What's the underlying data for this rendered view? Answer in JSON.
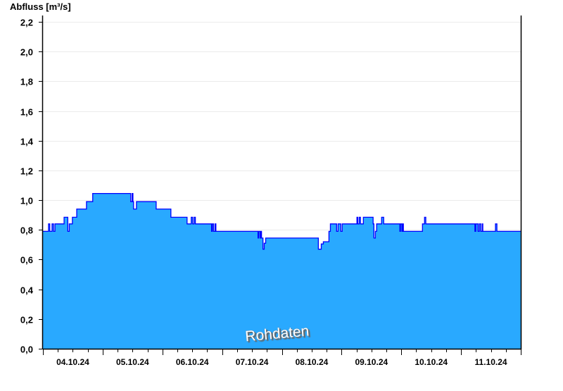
{
  "chart_data": {
    "type": "area",
    "ylabel": "Abfluss [m³/s]",
    "ylim": [
      0,
      2.2
    ],
    "yticks": [
      "0,0",
      "0,2",
      "0,4",
      "0,6",
      "0,8",
      "1,0",
      "1,2",
      "1,4",
      "1,6",
      "1,8",
      "2,0",
      "2,2"
    ],
    "xlim": [
      "04.10.24 00:00",
      "12.10.24 00:00"
    ],
    "xticks": [
      "04.10.24",
      "05.10.24",
      "06.10.24",
      "07.10.24",
      "08.10.24",
      "09.10.24",
      "10.10.24",
      "11.10.24"
    ],
    "grid": true,
    "watermark": "Rohdaten",
    "colors": {
      "fill": "#29a9ff",
      "line": "#0000ff",
      "day_separator": "#1f5f8f",
      "grid": "#ebebeb"
    },
    "step": true,
    "points": [
      [
        "04.10.24 00:00",
        0.79
      ],
      [
        "04.10.24 02:15",
        0.84
      ],
      [
        "04.10.24 02:45",
        0.79
      ],
      [
        "04.10.24 03:40",
        0.84
      ],
      [
        "04.10.24 04:15",
        0.79
      ],
      [
        "04.10.24 04:50",
        0.84
      ],
      [
        "04.10.24 08:30",
        0.885
      ],
      [
        "04.10.24 10:00",
        0.79
      ],
      [
        "04.10.24 10:35",
        0.84
      ],
      [
        "04.10.24 11:50",
        0.885
      ],
      [
        "04.10.24 13:35",
        0.94
      ],
      [
        "04.10.24 17:30",
        0.99
      ],
      [
        "04.10.24 20:00",
        1.045
      ],
      [
        "05.10.24 11:15",
        0.99
      ],
      [
        "05.10.24 11:50",
        1.045
      ],
      [
        "05.10.24 12:10",
        0.99
      ],
      [
        "05.10.24 12:25",
        0.94
      ],
      [
        "05.10.24 13:35",
        0.99
      ],
      [
        "05.10.24 21:30",
        0.94
      ],
      [
        "06.10.24 03:25",
        0.885
      ],
      [
        "06.10.24 09:55",
        0.84
      ],
      [
        "06.10.24 11:35",
        0.885
      ],
      [
        "06.10.24 12:10",
        0.84
      ],
      [
        "06.10.24 12:45",
        0.885
      ],
      [
        "06.10.24 13:15",
        0.84
      ],
      [
        "06.10.24 19:45",
        0.79
      ],
      [
        "06.10.24 20:05",
        0.84
      ],
      [
        "06.10.24 20:35",
        0.79
      ],
      [
        "06.10.24 21:10",
        0.84
      ],
      [
        "06.10.24 21:30",
        0.79
      ],
      [
        "07.10.24 14:25",
        0.745
      ],
      [
        "07.10.24 14:40",
        0.79
      ],
      [
        "07.10.24 15:15",
        0.745
      ],
      [
        "07.10.24 15:30",
        0.79
      ],
      [
        "07.10.24 15:50",
        0.745
      ],
      [
        "07.10.24 16:25",
        0.67
      ],
      [
        "07.10.24 16:55",
        0.71
      ],
      [
        "07.10.24 17:30",
        0.745
      ],
      [
        "08.10.24 14:40",
        0.67
      ],
      [
        "08.10.24 15:50",
        0.705
      ],
      [
        "08.10.24 16:40",
        0.72
      ],
      [
        "08.10.24 18:55",
        0.79
      ],
      [
        "08.10.24 19:30",
        0.84
      ],
      [
        "08.10.24 22:00",
        0.79
      ],
      [
        "08.10.24 22:35",
        0.84
      ],
      [
        "08.10.24 23:40",
        0.79
      ],
      [
        "09.10.24 00:15",
        0.84
      ],
      [
        "09.10.24 06:10",
        0.885
      ],
      [
        "09.10.24 06:30",
        0.84
      ],
      [
        "09.10.24 07:05",
        0.885
      ],
      [
        "09.10.24 07:35",
        0.84
      ],
      [
        "09.10.24 08:45",
        0.885
      ],
      [
        "09.10.24 12:40",
        0.84
      ],
      [
        "09.10.24 13:00",
        0.745
      ],
      [
        "09.10.24 13:35",
        0.79
      ],
      [
        "09.10.24 14:05",
        0.84
      ],
      [
        "09.10.24 16:05",
        0.885
      ],
      [
        "09.10.24 16:55",
        0.84
      ],
      [
        "09.10.24 23:25",
        0.79
      ],
      [
        "09.10.24 23:40",
        0.84
      ],
      [
        "10.10.24 00:15",
        0.79
      ],
      [
        "10.10.24 00:35",
        0.84
      ],
      [
        "10.10.24 00:50",
        0.79
      ],
      [
        "10.10.24 08:30",
        0.84
      ],
      [
        "10.10.24 09:20",
        0.885
      ],
      [
        "10.10.24 09:50",
        0.84
      ],
      [
        "11.10.24 05:35",
        0.79
      ],
      [
        "11.10.24 05:55",
        0.84
      ],
      [
        "11.10.24 06:50",
        0.79
      ],
      [
        "11.10.24 07:20",
        0.84
      ],
      [
        "11.10.24 07:55",
        0.79
      ],
      [
        "11.10.24 08:30",
        0.84
      ],
      [
        "11.10.24 08:45",
        0.79
      ],
      [
        "11.10.24 13:50",
        0.84
      ],
      [
        "11.10.24 14:25",
        0.79
      ],
      [
        "12.10.24 00:00",
        0.79
      ]
    ]
  }
}
